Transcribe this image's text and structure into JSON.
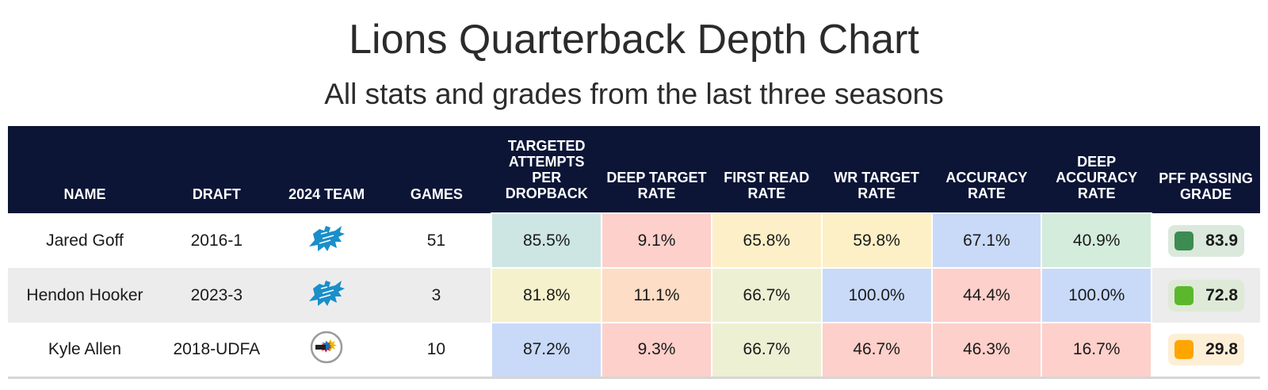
{
  "chart_data": {
    "type": "table",
    "title": "Lions Quarterback Depth Chart",
    "subtitle": "All stats and grades from the last three seasons",
    "columns": [
      "NAME",
      "DRAFT",
      "2024 TEAM",
      "GAMES",
      "TARGETED ATTEMPTS PER DROPBACK",
      "DEEP TARGET RATE",
      "FIRST READ RATE",
      "WR TARGET RATE",
      "ACCURACY RATE",
      "DEEP ACCURACY RATE",
      "PFF PASSING GRADE"
    ],
    "rows": [
      {
        "name": "Jared Goff",
        "draft": "2016-1",
        "team_logo": "lions-logo-icon",
        "games": "51",
        "stats": [
          {
            "value": "85.5%",
            "color": "#cde6e4"
          },
          {
            "value": "9.1%",
            "color": "#fdd0cb"
          },
          {
            "value": "65.8%",
            "color": "#fdefc8"
          },
          {
            "value": "59.8%",
            "color": "#fdf0c7"
          },
          {
            "value": "67.1%",
            "color": "#c9daf8"
          },
          {
            "value": "40.9%",
            "color": "#d4ecdc"
          }
        ],
        "grade": {
          "value": "83.9",
          "swatch": "#3d8c52",
          "bg": "#dbe8dc"
        }
      },
      {
        "name": "Hendon Hooker",
        "draft": "2023-3",
        "team_logo": "lions-logo-icon",
        "games": "3",
        "stats": [
          {
            "value": "81.8%",
            "color": "#f5f1cc"
          },
          {
            "value": "11.1%",
            "color": "#fdddc6"
          },
          {
            "value": "66.7%",
            "color": "#eef0d4"
          },
          {
            "value": "100.0%",
            "color": "#c9daf8"
          },
          {
            "value": "44.4%",
            "color": "#fdd0cb"
          },
          {
            "value": "100.0%",
            "color": "#c9daf8"
          }
        ],
        "grade": {
          "value": "72.8",
          "swatch": "#5bb82d",
          "bg": "#dfe9d8"
        }
      },
      {
        "name": "Kyle Allen",
        "draft": "2018-UDFA",
        "team_logo": "steelers-logo-icon",
        "games": "10",
        "stats": [
          {
            "value": "87.2%",
            "color": "#c9daf8"
          },
          {
            "value": "9.3%",
            "color": "#fdd0cb"
          },
          {
            "value": "66.7%",
            "color": "#eef0d4"
          },
          {
            "value": "46.7%",
            "color": "#fdd0cb"
          },
          {
            "value": "46.3%",
            "color": "#fdd0cb"
          },
          {
            "value": "16.7%",
            "color": "#fdd0cb"
          }
        ],
        "grade": {
          "value": "29.8",
          "swatch": "#ffa500",
          "bg": "#fdefd6"
        }
      }
    ]
  },
  "colors": {
    "header_bg": "#0c1536",
    "alt_row_bg": "#ececec"
  }
}
